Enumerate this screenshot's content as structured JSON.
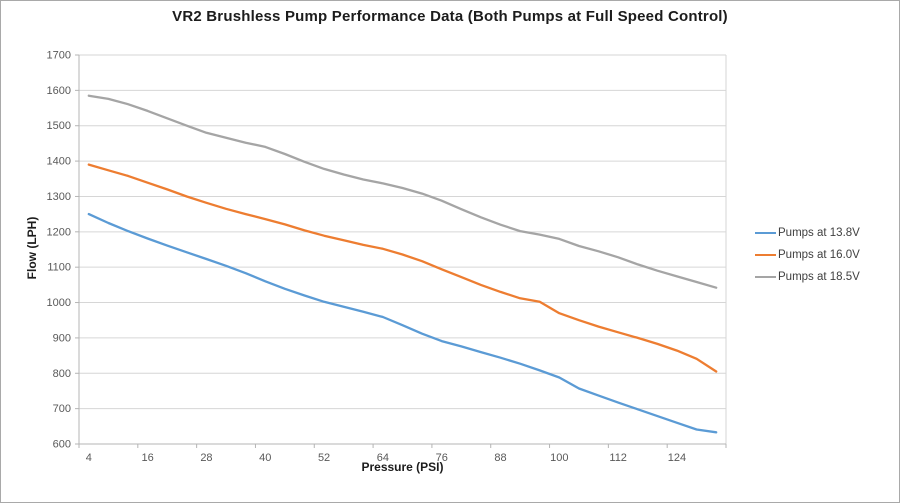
{
  "window": {
    "background": "#ffffff",
    "border_color": "#a9a9a9"
  },
  "chart_data": {
    "type": "line",
    "title": "VR2 Brushless Pump Performance Data (Both Pumps at Full Speed Control)",
    "xlabel": "Pressure (PSI)",
    "ylabel": "Flow (LPH)",
    "x": [
      4,
      8,
      12,
      16,
      20,
      24,
      28,
      32,
      36,
      40,
      44,
      48,
      52,
      56,
      60,
      64,
      68,
      72,
      76,
      80,
      84,
      88,
      92,
      96,
      100,
      104,
      108,
      112,
      116,
      120,
      124,
      128,
      132
    ],
    "x_tick_labels": [
      4,
      16,
      28,
      40,
      52,
      64,
      76,
      88,
      100,
      112,
      124
    ],
    "ylim": [
      600,
      1700
    ],
    "y_tick_step": 100,
    "grid": "horizontal",
    "grid_color": "#d6d6d6",
    "axis_color": "#b4b4b4",
    "tick_label_color": "#595959",
    "title_color": "#1c1c1c",
    "legend_position": "right",
    "series": [
      {
        "name": "Pumps at 13.8V",
        "color": "#5b9bd5",
        "values": [
          1250,
          1225,
          1202,
          1181,
          1161,
          1142,
          1123,
          1104,
          1083,
          1060,
          1039,
          1020,
          1002,
          988,
          974,
          959,
          936,
          912,
          891,
          876,
          860,
          844,
          827,
          808,
          788,
          757,
          737,
          717,
          698,
          679,
          660,
          641,
          633
        ]
      },
      {
        "name": "Pumps at 16.0V",
        "color": "#ed7d31",
        "values": [
          1390,
          1374,
          1358,
          1339,
          1320,
          1300,
          1282,
          1265,
          1250,
          1236,
          1221,
          1204,
          1189,
          1176,
          1163,
          1152,
          1136,
          1117,
          1094,
          1072,
          1050,
          1030,
          1012,
          1002,
          970,
          950,
          932,
          916,
          900,
          883,
          864,
          841,
          805
        ]
      },
      {
        "name": "Pumps at 18.5V",
        "color": "#a5a5a5",
        "values": [
          1585,
          1576,
          1561,
          1542,
          1521,
          1500,
          1480,
          1466,
          1452,
          1440,
          1420,
          1398,
          1378,
          1362,
          1348,
          1337,
          1324,
          1308,
          1288,
          1264,
          1241,
          1220,
          1202,
          1192,
          1180,
          1160,
          1145,
          1128,
          1108,
          1090,
          1074,
          1058,
          1042
        ]
      }
    ]
  }
}
